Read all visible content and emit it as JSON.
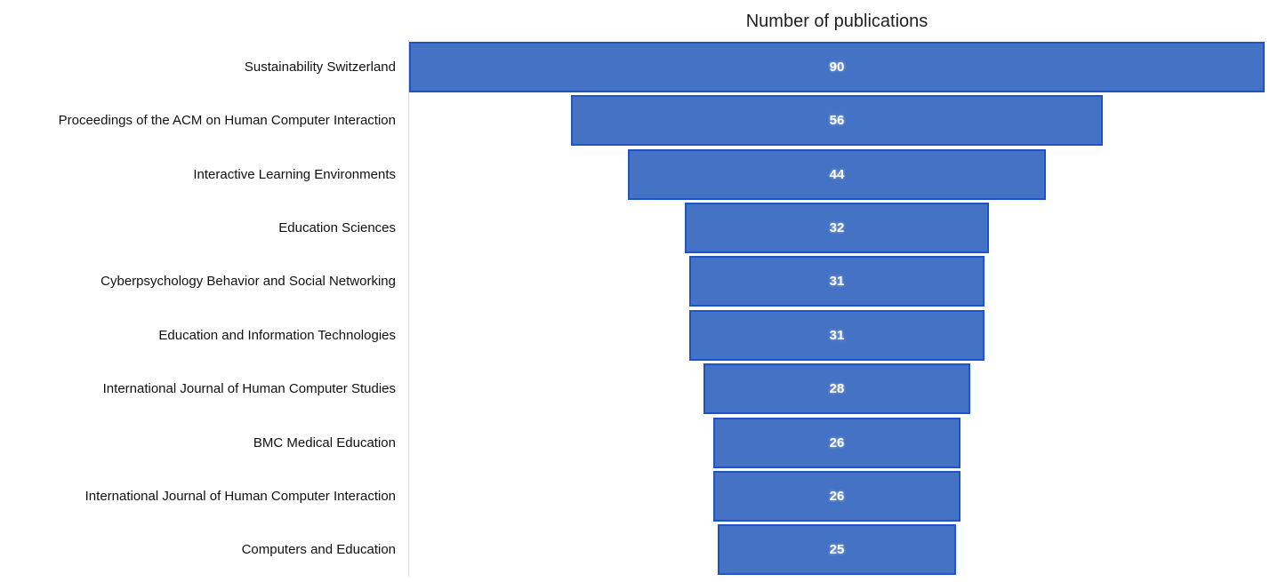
{
  "chart_data": {
    "type": "bar",
    "variant": "funnel-horizontal-centered",
    "title": "Number of publications",
    "categories": [
      "Sustainability Switzerland",
      "Proceedings of the ACM on Human Computer Interaction",
      "Interactive Learning Environments",
      "Education Sciences",
      "Cyberpsychology Behavior and Social Networking",
      "Education and Information Technologies",
      "International Journal of Human Computer Studies",
      "BMC Medical Education",
      "International Journal of Human Computer Interaction",
      "Computers and Education"
    ],
    "values": [
      90,
      56,
      44,
      32,
      31,
      31,
      28,
      26,
      26,
      25
    ],
    "value_scale_max": 90,
    "xlabel": "",
    "ylabel": "",
    "legend_position": "none",
    "grid": false,
    "colors": {
      "bar_fill": "#4472C4",
      "bar_border": "#2053C5",
      "axis_line": "#D9D9D9",
      "title_text": "#1F1F1F",
      "category_text": "#111111",
      "value_text": "#FFFFFF",
      "background": "#FFFFFF"
    }
  }
}
